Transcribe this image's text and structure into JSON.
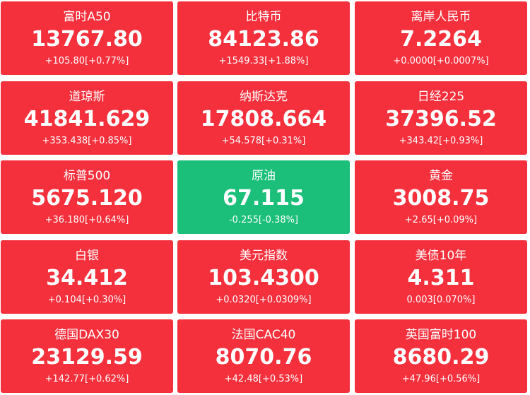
{
  "quotes": [
    {
      "name": "富时A50",
      "price": "13767.80",
      "change": "+105.80[+0.77%]",
      "direction": "up"
    },
    {
      "name": "比特币",
      "price": "84123.86",
      "change": "+1549.33[+1.88%]",
      "direction": "up"
    },
    {
      "name": "离岸人民币",
      "price": "7.2264",
      "change": "+0.0000[+0.0007%]",
      "direction": "up"
    },
    {
      "name": "道琼斯",
      "price": "41841.629",
      "change": "+353.438[+0.85%]",
      "direction": "up"
    },
    {
      "name": "纳斯达克",
      "price": "17808.664",
      "change": "+54.578[+0.31%]",
      "direction": "up"
    },
    {
      "name": "日经225",
      "price": "37396.52",
      "change": "+343.42[+0.93%]",
      "direction": "up"
    },
    {
      "name": "标普500",
      "price": "5675.120",
      "change": "+36.180[+0.64%]",
      "direction": "up"
    },
    {
      "name": "原油",
      "price": "67.115",
      "change": "-0.255[-0.38%]",
      "direction": "down"
    },
    {
      "name": "黄金",
      "price": "3008.75",
      "change": "+2.65[+0.09%]",
      "direction": "up"
    },
    {
      "name": "白银",
      "price": "34.412",
      "change": "+0.104[+0.30%]",
      "direction": "up"
    },
    {
      "name": "美元指数",
      "price": "103.4300",
      "change": "+0.0320[+0.0309%]",
      "direction": "up"
    },
    {
      "name": "美债10年",
      "price": "4.311",
      "change": "0.003[0.070%]",
      "direction": "up"
    },
    {
      "name": "德国DAX30",
      "price": "23129.59",
      "change": "+142.77[+0.62%]",
      "direction": "up"
    },
    {
      "name": "法国CAC40",
      "price": "8070.76",
      "change": "+42.48[+0.53%]",
      "direction": "up"
    },
    {
      "name": "英国富时100",
      "price": "8680.29",
      "change": "+47.96[+0.56%]",
      "direction": "up"
    }
  ],
  "colors": {
    "up": "#f5303d",
    "down": "#1bbf79",
    "text": "#ffffff"
  }
}
